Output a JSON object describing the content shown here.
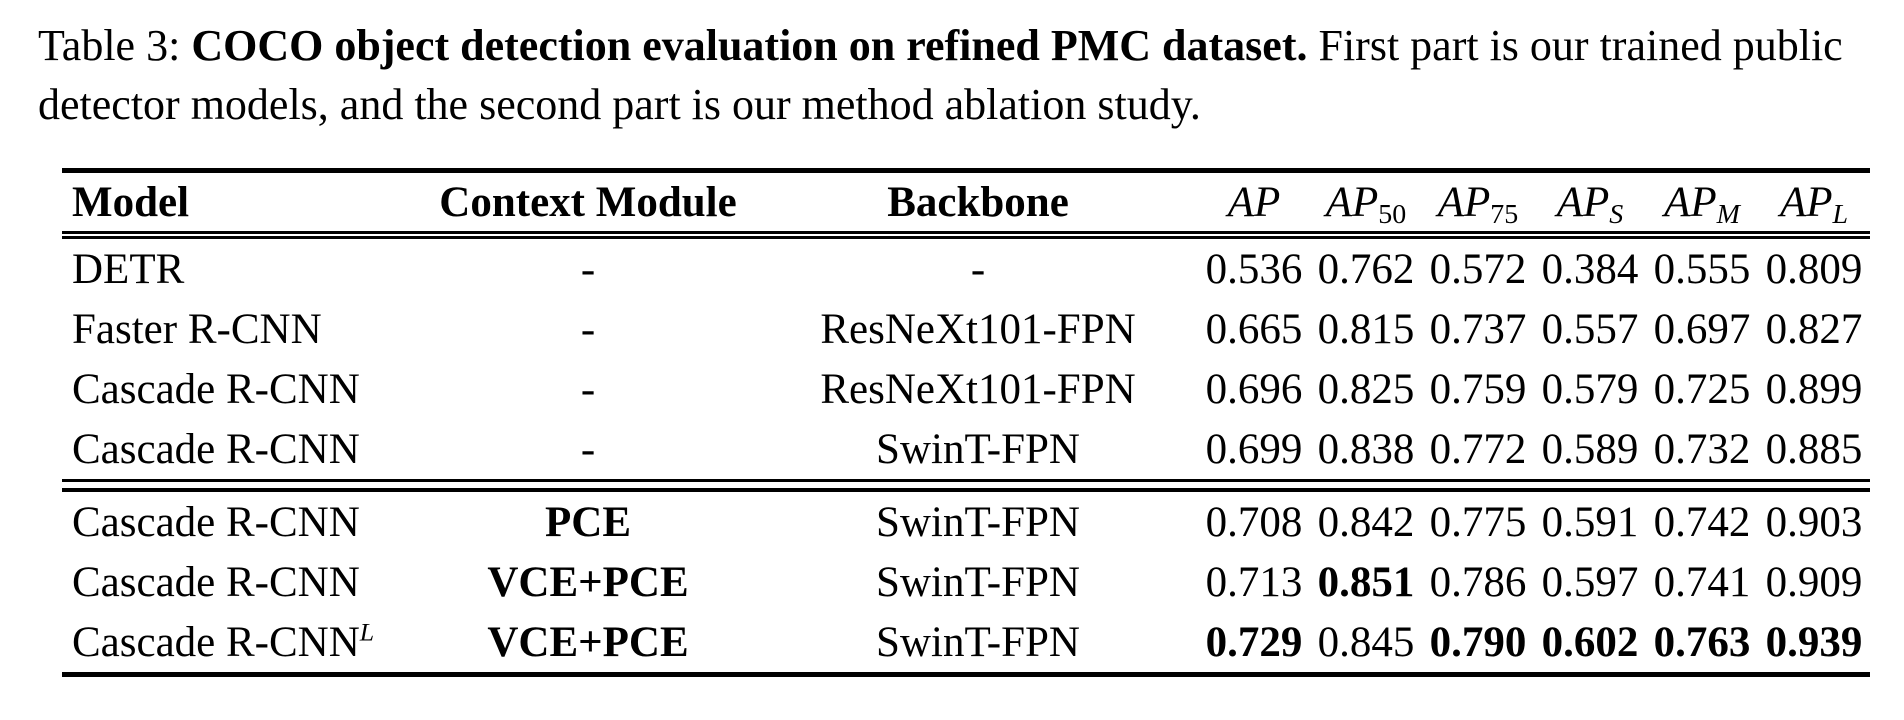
{
  "caption": {
    "prefix": "Table 3: ",
    "bold": "COCO object detection evaluation on refined PMC dataset.",
    "suffix": " First part is our trained public detector models, and the second part is our method ablation study."
  },
  "table": {
    "headers": {
      "model": "Model",
      "context": "Context Module",
      "backbone": "Backbone",
      "metrics": [
        {
          "label": "AP",
          "sub": ""
        },
        {
          "label": "AP",
          "sub": "50"
        },
        {
          "label": "AP",
          "sub": "75"
        },
        {
          "label": "AP",
          "sub": "S"
        },
        {
          "label": "AP",
          "sub": "M"
        },
        {
          "label": "AP",
          "sub": "L"
        }
      ]
    },
    "part1": [
      {
        "model": "DETR",
        "context": "-",
        "backbone": "-",
        "values": [
          "0.536",
          "0.762",
          "0.572",
          "0.384",
          "0.555",
          "0.809"
        ]
      },
      {
        "model": "Faster R-CNN",
        "context": "-",
        "backbone": "ResNeXt101-FPN",
        "values": [
          "0.665",
          "0.815",
          "0.737",
          "0.557",
          "0.697",
          "0.827"
        ]
      },
      {
        "model": "Cascade R-CNN",
        "context": "-",
        "backbone": "ResNeXt101-FPN",
        "values": [
          "0.696",
          "0.825",
          "0.759",
          "0.579",
          "0.725",
          "0.899"
        ]
      },
      {
        "model": "Cascade R-CNN",
        "context": "-",
        "backbone": "SwinT-FPN",
        "values": [
          "0.699",
          "0.838",
          "0.772",
          "0.589",
          "0.732",
          "0.885"
        ]
      }
    ],
    "part2": [
      {
        "model": "Cascade R-CNN",
        "context": "PCE",
        "backbone": "SwinT-FPN",
        "values": [
          "0.708",
          "0.842",
          "0.775",
          "0.591",
          "0.742",
          "0.903"
        ],
        "bold": [
          false,
          false,
          false,
          false,
          false,
          false
        ]
      },
      {
        "model": "Cascade R-CNN",
        "context": "VCE+PCE",
        "backbone": "SwinT-FPN",
        "values": [
          "0.713",
          "0.851",
          "0.786",
          "0.597",
          "0.741",
          "0.909"
        ],
        "bold": [
          false,
          true,
          false,
          false,
          false,
          false
        ]
      },
      {
        "model": "Cascade R-CNN",
        "model_sup": "L",
        "context": "VCE+PCE",
        "backbone": "SwinT-FPN",
        "values": [
          "0.729",
          "0.845",
          "0.790",
          "0.602",
          "0.763",
          "0.939"
        ],
        "bold": [
          true,
          false,
          true,
          true,
          true,
          true
        ]
      }
    ]
  }
}
